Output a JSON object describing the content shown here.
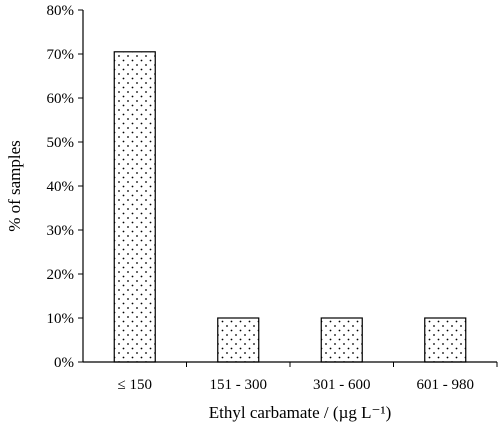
{
  "chart_data": {
    "type": "bar",
    "title": "",
    "xlabel": "Ethyl carbamate / (µg L⁻¹)",
    "ylabel": "% of samples",
    "categories": [
      "≤ 150",
      "151 - 300",
      "301 - 600",
      "601 - 980"
    ],
    "values": [
      70.5,
      10,
      10,
      10
    ],
    "ylim": [
      0,
      80
    ],
    "yticks": [
      "0%",
      "10%",
      "20%",
      "30%",
      "40%",
      "50%",
      "60%",
      "70%",
      "80%"
    ],
    "grid": false,
    "bar_fill": "dotted",
    "colors": {
      "bar_edge": "#000000",
      "dots": "#000000",
      "bar_bg": "#ffffff",
      "axis": "#000000"
    }
  }
}
